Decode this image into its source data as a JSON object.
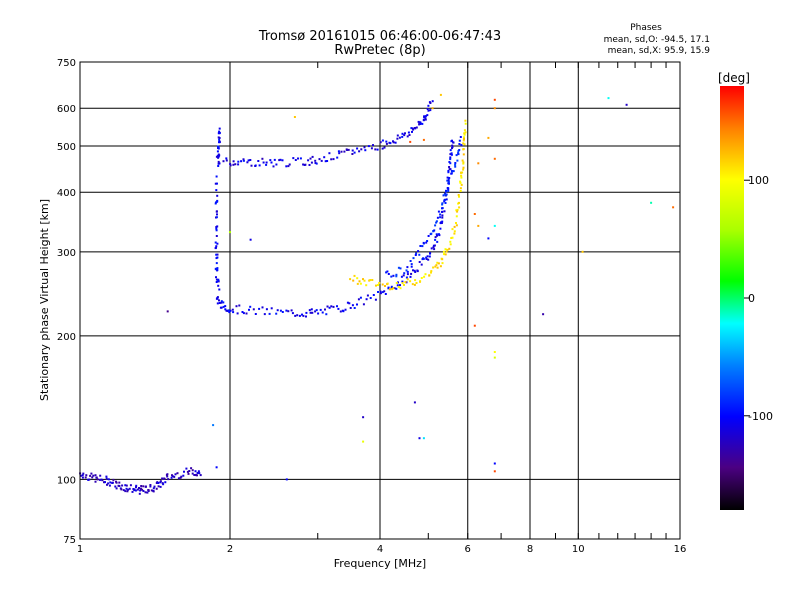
{
  "chart_data": {
    "type": "scatter",
    "title": "Tromsø 20161015 06:46:00-06:47:43",
    "subtitle": "RwPretec (8p)",
    "xlabel": "Frequency [MHz]",
    "ylabel": "Stationary phase Virtual Height [km]",
    "xscale": "log",
    "yscale": "log",
    "xlim": [
      1,
      16
    ],
    "ylim": [
      75,
      750
    ],
    "xticks": [
      1,
      2,
      4,
      6,
      8,
      10,
      16
    ],
    "xtick_labels": [
      "1",
      "2",
      "4",
      "6",
      "8",
      "10",
      "16"
    ],
    "yticks": [
      75,
      100,
      200,
      300,
      400,
      500,
      600,
      750
    ],
    "ytick_labels": [
      "75",
      "100",
      "200",
      "300",
      "400",
      "500",
      "600",
      "750"
    ],
    "grid": true,
    "phases_box": {
      "title": "Phases",
      "line_o": "mean, sd,O: -94.5, 17.1",
      "line_x": "mean, sd,X:  95.9, 15.9"
    },
    "colorbar": {
      "label": "[deg]",
      "range": [
        -180,
        180
      ],
      "ticks": [
        100,
        0,
        -100
      ],
      "tick_labels": [
        "100",
        "0",
        "-100"
      ]
    },
    "traces": [
      {
        "phase": -120,
        "points": [
          [
            1.0,
            103
          ],
          [
            1.05,
            101
          ],
          [
            1.1,
            100
          ],
          [
            1.15,
            99
          ],
          [
            1.2,
            97
          ],
          [
            1.25,
            96
          ],
          [
            1.3,
            95
          ],
          [
            1.35,
            95
          ],
          [
            1.4,
            96
          ],
          [
            1.45,
            98
          ],
          [
            1.5,
            101
          ],
          [
            1.6,
            103
          ],
          [
            1.7,
            104
          ],
          [
            1.75,
            103
          ]
        ]
      },
      {
        "phase": -105,
        "points": [
          [
            1.88,
            240
          ],
          [
            1.92,
            232
          ],
          [
            2.0,
            228
          ],
          [
            2.2,
            226
          ],
          [
            2.5,
            224
          ],
          [
            2.8,
            223
          ],
          [
            3.0,
            224
          ],
          [
            3.3,
            228
          ],
          [
            3.6,
            234
          ],
          [
            4.0,
            244
          ],
          [
            4.3,
            255
          ],
          [
            4.6,
            268
          ],
          [
            4.9,
            286
          ],
          [
            5.1,
            305
          ],
          [
            5.25,
            330
          ],
          [
            5.35,
            360
          ],
          [
            5.45,
            400
          ],
          [
            5.5,
            440
          ],
          [
            5.55,
            480
          ],
          [
            5.6,
            520
          ]
        ]
      },
      {
        "phase": -110,
        "points": [
          [
            1.95,
            465
          ],
          [
            2.1,
            463
          ],
          [
            2.3,
            462
          ],
          [
            2.5,
            462
          ],
          [
            2.8,
            463
          ],
          [
            3.0,
            468
          ],
          [
            3.3,
            478
          ],
          [
            3.6,
            490
          ],
          [
            4.0,
            502
          ],
          [
            4.3,
            516
          ],
          [
            4.6,
            535
          ],
          [
            4.8,
            555
          ],
          [
            4.95,
            580
          ],
          [
            5.1,
            620
          ]
        ]
      },
      {
        "phase": -105,
        "points": [
          [
            1.9,
            460
          ],
          [
            1.9,
            500
          ],
          [
            1.9,
            540
          ],
          [
            1.88,
            400
          ],
          [
            1.88,
            350
          ],
          [
            1.88,
            300
          ],
          [
            1.88,
            270
          ],
          [
            1.9,
            250
          ]
        ]
      },
      {
        "phase": 110,
        "points": [
          [
            3.5,
            265
          ],
          [
            3.8,
            258
          ],
          [
            4.2,
            255
          ],
          [
            4.6,
            258
          ],
          [
            5.0,
            268
          ],
          [
            5.3,
            285
          ],
          [
            5.5,
            310
          ],
          [
            5.7,
            350
          ],
          [
            5.8,
            400
          ],
          [
            5.85,
            450
          ],
          [
            5.9,
            510
          ],
          [
            5.92,
            560
          ]
        ]
      },
      {
        "phase": -90,
        "points": [
          [
            4.1,
            268
          ],
          [
            4.5,
            275
          ],
          [
            4.8,
            300
          ],
          [
            5.1,
            330
          ],
          [
            5.3,
            370
          ],
          [
            5.5,
            420
          ],
          [
            5.7,
            470
          ],
          [
            5.85,
            520
          ]
        ]
      }
    ],
    "scatter": [
      {
        "x": 2.7,
        "y": 575,
        "phase": 120
      },
      {
        "x": 6.8,
        "y": 625,
        "phase": 160
      },
      {
        "x": 6.8,
        "y": 600,
        "phase": 140
      },
      {
        "x": 6.6,
        "y": 520,
        "phase": 130
      },
      {
        "x": 6.8,
        "y": 470,
        "phase": 150
      },
      {
        "x": 6.3,
        "y": 460,
        "phase": 140
      },
      {
        "x": 6.2,
        "y": 360,
        "phase": 150
      },
      {
        "x": 6.3,
        "y": 340,
        "phase": 130
      },
      {
        "x": 6.8,
        "y": 340,
        "phase": -20
      },
      {
        "x": 6.6,
        "y": 320,
        "phase": -100
      },
      {
        "x": 6.2,
        "y": 210,
        "phase": 160
      },
      {
        "x": 6.8,
        "y": 185,
        "phase": 100
      },
      {
        "x": 6.8,
        "y": 180,
        "phase": 80
      },
      {
        "x": 6.8,
        "y": 108,
        "phase": -100
      },
      {
        "x": 6.8,
        "y": 104,
        "phase": 160
      },
      {
        "x": 8.5,
        "y": 222,
        "phase": -130
      },
      {
        "x": 10.2,
        "y": 300,
        "phase": 120
      },
      {
        "x": 11.5,
        "y": 630,
        "phase": -20
      },
      {
        "x": 12.5,
        "y": 610,
        "phase": -120
      },
      {
        "x": 14.0,
        "y": 380,
        "phase": -10
      },
      {
        "x": 15.5,
        "y": 372,
        "phase": 150
      },
      {
        "x": 1.5,
        "y": 225,
        "phase": -140
      },
      {
        "x": 1.85,
        "y": 130,
        "phase": -60
      },
      {
        "x": 1.88,
        "y": 106,
        "phase": -100
      },
      {
        "x": 2.6,
        "y": 100,
        "phase": -100
      },
      {
        "x": 2.2,
        "y": 318,
        "phase": -110
      },
      {
        "x": 3.7,
        "y": 135,
        "phase": -120
      },
      {
        "x": 3.7,
        "y": 120,
        "phase": 90
      },
      {
        "x": 4.7,
        "y": 145,
        "phase": -120
      },
      {
        "x": 4.8,
        "y": 122,
        "phase": -110
      },
      {
        "x": 4.9,
        "y": 122,
        "phase": -30
      },
      {
        "x": 4.6,
        "y": 510,
        "phase": 160
      },
      {
        "x": 4.9,
        "y": 515,
        "phase": 150
      },
      {
        "x": 5.3,
        "y": 640,
        "phase": 120
      },
      {
        "x": 5.1,
        "y": 600,
        "phase": 130
      },
      {
        "x": 2.0,
        "y": 330,
        "phase": 60
      }
    ]
  }
}
